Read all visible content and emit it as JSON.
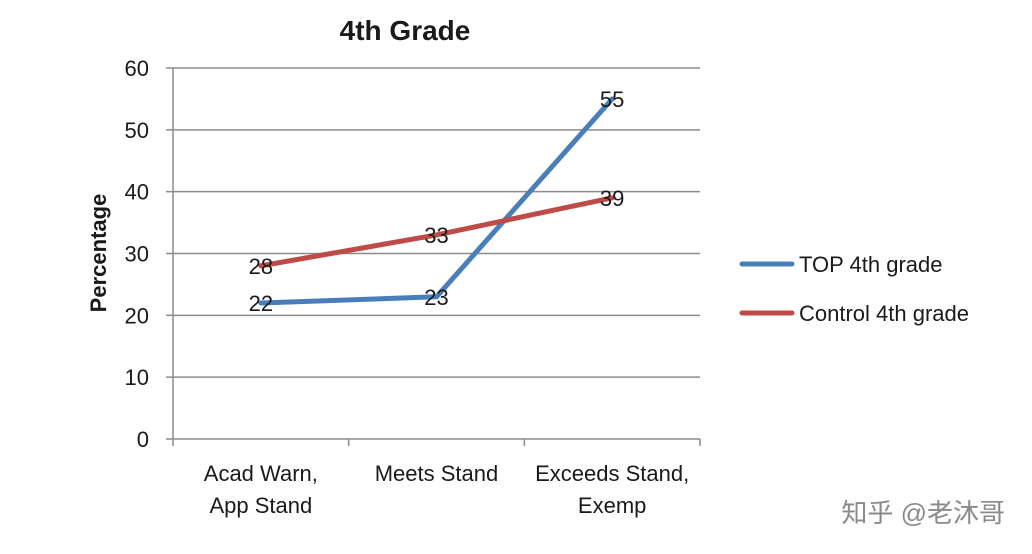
{
  "chart_data": {
    "type": "line",
    "title": "4th Grade",
    "xlabel": "",
    "ylabel": "Percentage",
    "categories": [
      [
        "Acad Warn,",
        "App Stand"
      ],
      [
        "Meets Stand"
      ],
      [
        "Exceeds Stand,",
        "Exemp"
      ]
    ],
    "ylim": [
      0,
      60
    ],
    "yticks": [
      0,
      10,
      20,
      30,
      40,
      50,
      60
    ],
    "grid": true,
    "legend_position": "right",
    "series": [
      {
        "name": "TOP 4th grade",
        "values": [
          22,
          23,
          55
        ],
        "color": "#4a7ebb"
      },
      {
        "name": "Control 4th grade",
        "values": [
          28,
          33,
          39
        ],
        "color": "#be4b48"
      }
    ]
  },
  "watermark": "知乎 @老沐哥",
  "colors": {
    "grid": "#8c8c8c",
    "axis": "#8c8c8c"
  }
}
